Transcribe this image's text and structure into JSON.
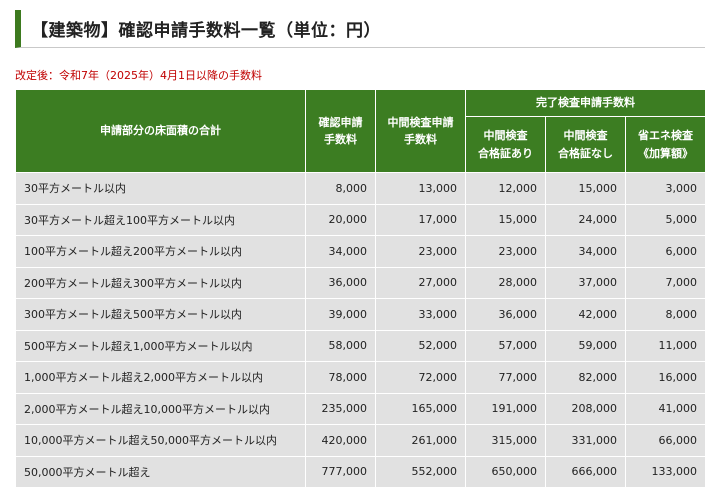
{
  "title": "【建築物】確認申請手数料一覧（単位：円）",
  "note": "改定後：令和7年（2025年）4月1日以降の手数料",
  "table": {
    "headers": {
      "area": "申請部分の床面積の合計",
      "confirm_line1": "確認申請",
      "confirm_line2": "手数料",
      "interim_line1": "中間検査申請",
      "interim_line2": "手数料",
      "completion_group": "完了検査申請手数料",
      "with_interim_line1": "中間検査",
      "with_interim_line2": "合格証あり",
      "without_interim_line1": "中間検査",
      "without_interim_line2": "合格証なし",
      "energy_line1": "省エネ検査",
      "energy_line2": "《加算額》"
    },
    "rows": [
      {
        "area": "30平方メートル以内",
        "confirm": "8,000",
        "interim": "13,000",
        "with": "12,000",
        "without": "15,000",
        "energy": "3,000"
      },
      {
        "area": "30平方メートル超え100平方メートル以内",
        "confirm": "20,000",
        "interim": "17,000",
        "with": "15,000",
        "without": "24,000",
        "energy": "5,000"
      },
      {
        "area": "100平方メートル超え200平方メートル以内",
        "confirm": "34,000",
        "interim": "23,000",
        "with": "23,000",
        "without": "34,000",
        "energy": "6,000"
      },
      {
        "area": "200平方メートル超え300平方メートル以内",
        "confirm": "36,000",
        "interim": "27,000",
        "with": "28,000",
        "without": "37,000",
        "energy": "7,000"
      },
      {
        "area": "300平方メートル超え500平方メートル以内",
        "confirm": "39,000",
        "interim": "33,000",
        "with": "36,000",
        "without": "42,000",
        "energy": "8,000"
      },
      {
        "area": "500平方メートル超え1,000平方メートル以内",
        "confirm": "58,000",
        "interim": "52,000",
        "with": "57,000",
        "without": "59,000",
        "energy": "11,000"
      },
      {
        "area": "1,000平方メートル超え2,000平方メートル以内",
        "confirm": "78,000",
        "interim": "72,000",
        "with": "77,000",
        "without": "82,000",
        "energy": "16,000"
      },
      {
        "area": "2,000平方メートル超え10,000平方メートル以内",
        "confirm": "235,000",
        "interim": "165,000",
        "with": "191,000",
        "without": "208,000",
        "energy": "41,000"
      },
      {
        "area": "10,000平方メートル超え50,000平方メートル以内",
        "confirm": "420,000",
        "interim": "261,000",
        "with": "315,000",
        "without": "331,000",
        "energy": "66,000"
      },
      {
        "area": "50,000平方メートル超え",
        "confirm": "777,000",
        "interim": "552,000",
        "with": "650,000",
        "without": "666,000",
        "energy": "133,000"
      }
    ]
  },
  "colors": {
    "header_green": "#3c7d22",
    "row_gray": "#e1e1e1",
    "note_red": "#c00000"
  }
}
